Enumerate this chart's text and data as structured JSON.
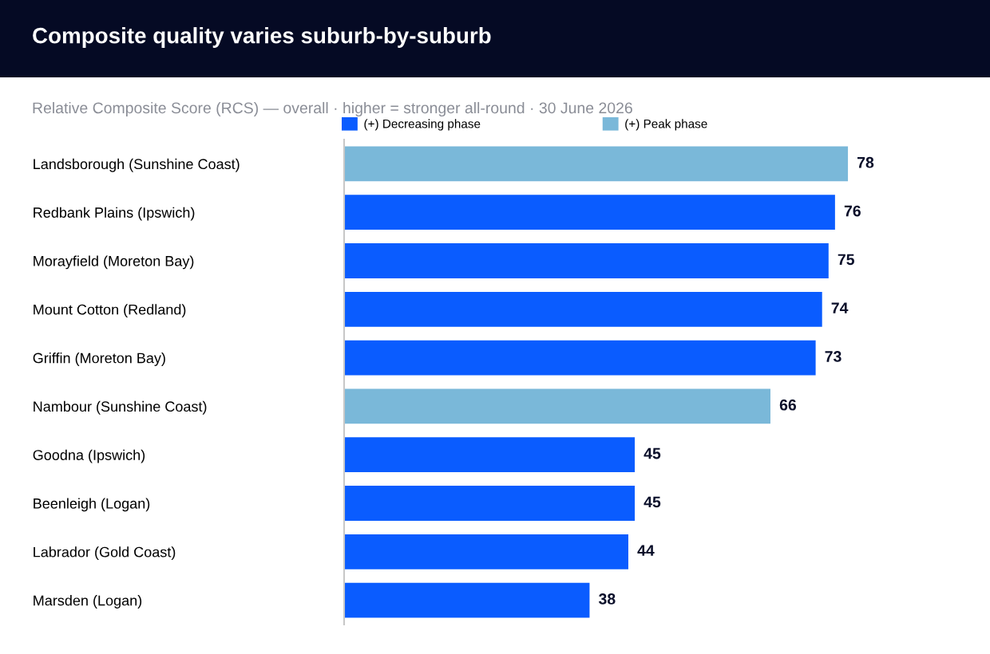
{
  "chart_data": {
    "type": "bar",
    "orientation": "horizontal",
    "title": "Composite quality varies suburb-by-suburb",
    "subtitle": "Relative Composite Score (RCS) — overall · higher = stronger all-round · 30 June 2026",
    "categories": [
      "Landsborough (Sunshine Coast)",
      "Redbank Plains (Ipswich)",
      "Morayfield (Moreton Bay)",
      "Mount Cotton (Redland)",
      "Griffin (Moreton Bay)",
      "Nambour (Sunshine Coast)",
      "Goodna (Ipswich)",
      "Beenleigh (Logan)",
      "Labrador (Gold Coast)",
      "Marsden (Logan)"
    ],
    "series": [
      {
        "name": "(+) Decreasing phase",
        "color": "#0a5cff",
        "values": [
          null,
          76,
          75,
          74,
          73,
          null,
          45,
          45,
          44,
          38
        ]
      },
      {
        "name": "(+) Peak phase",
        "color": "#7ab8d9",
        "values": [
          78,
          null,
          null,
          null,
          null,
          66,
          null,
          null,
          null,
          null
        ]
      }
    ],
    "data_labels": true,
    "legend": "top",
    "grid": false
  }
}
